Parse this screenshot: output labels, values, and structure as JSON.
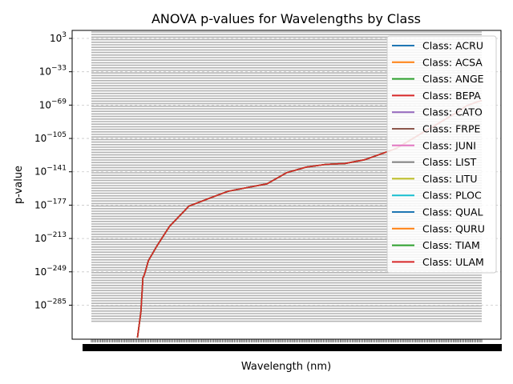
{
  "chart_data": {
    "type": "line",
    "title": "ANOVA p-values for Wavelengths by Class",
    "xlabel": "Wavelength (nm)",
    "ylabel": "p-value",
    "y_scale": "log",
    "y_ticks": [
      {
        "exp": 3,
        "label_base": "10",
        "label_exp": "3"
      },
      {
        "exp": -33,
        "label_base": "10",
        "label_exp": "−33"
      },
      {
        "exp": -69,
        "label_base": "10",
        "label_exp": "−69"
      },
      {
        "exp": -105,
        "label_base": "10",
        "label_exp": "−105"
      },
      {
        "exp": -141,
        "label_base": "10",
        "label_exp": "−141"
      },
      {
        "exp": -177,
        "label_base": "10",
        "label_exp": "−177"
      },
      {
        "exp": -213,
        "label_base": "10",
        "label_exp": "−213"
      },
      {
        "exp": -249,
        "label_base": "10",
        "label_exp": "−249"
      },
      {
        "exp": -285,
        "label_base": "10",
        "label_exp": "−285"
      }
    ],
    "y_exp_range": [
      -320,
      3
    ],
    "grid": true,
    "legend_position": "top-right",
    "series": [
      {
        "name": "Class: ACRU",
        "color": "#1f77b4"
      },
      {
        "name": "Class: ACSA",
        "color": "#ff7f0e"
      },
      {
        "name": "Class: ANGE",
        "color": "#2ca02c"
      },
      {
        "name": "Class: BEPA",
        "color": "#d62728"
      },
      {
        "name": "Class: CATO",
        "color": "#9467bd"
      },
      {
        "name": "Class: FRPE",
        "color": "#8c564b"
      },
      {
        "name": "Class: JUNI",
        "color": "#e377c2"
      },
      {
        "name": "Class: LIST",
        "color": "#7f7f7f"
      },
      {
        "name": "Class: LITU",
        "color": "#bcbd22"
      },
      {
        "name": "Class: PLOC",
        "color": "#17becf"
      },
      {
        "name": "Class: QUAL",
        "color": "#1f77b4"
      },
      {
        "name": "Class: QURU",
        "color": "#ff7f0e"
      },
      {
        "name": "Class: TIAM",
        "color": "#2ca02c"
      },
      {
        "name": "Class: ULAM",
        "color": "#d62728"
      }
    ],
    "curve": {
      "x_fraction": [
        0.118,
        0.127,
        0.13,
        0.132,
        0.134,
        0.138,
        0.146,
        0.168,
        0.2,
        0.25,
        0.3,
        0.35,
        0.4,
        0.45,
        0.5,
        0.55,
        0.6,
        0.65,
        0.7,
        0.74,
        0.78,
        0.82,
        0.86,
        0.9,
        0.94,
        0.96,
        0.985,
        1.0
      ],
      "log10_p": [
        -320,
        -292,
        -270,
        -255,
        -254,
        -249,
        -237,
        -221,
        -200,
        -178,
        -170,
        -162,
        -158,
        -154,
        -142,
        -136,
        -133,
        -132,
        -128,
        -122,
        -116,
        -106,
        -96,
        -86,
        -76,
        -70,
        -66,
        -64
      ]
    },
    "x_tick_count": 260
  }
}
